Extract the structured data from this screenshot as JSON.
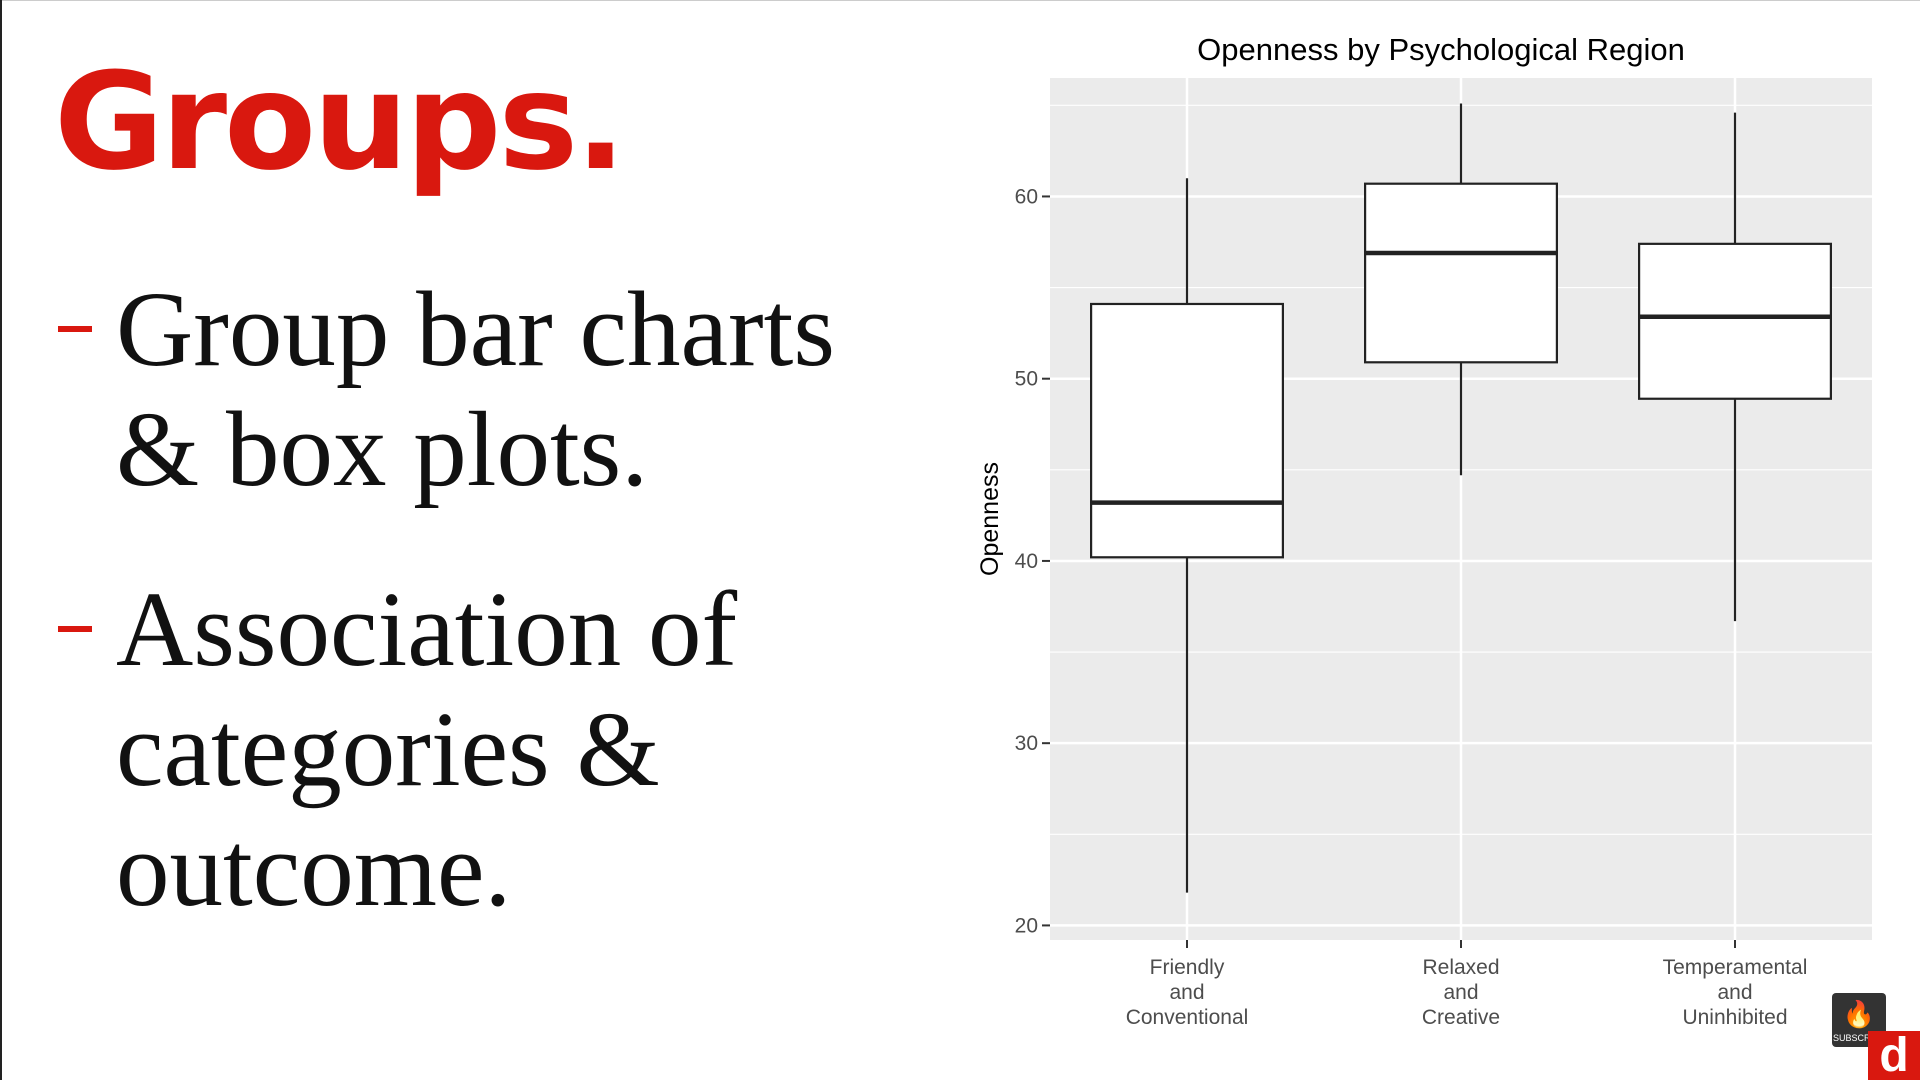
{
  "slide": {
    "title": "Groups.",
    "bullets": [
      {
        "lines": [
          "Group bar charts",
          "& box plots."
        ]
      },
      {
        "lines": [
          "Association of",
          "categories &",
          "outcome."
        ]
      }
    ]
  },
  "branding": {
    "subscribe_label": "SUBSCRIBE",
    "logo_letter": "d",
    "icon": "flame-icon"
  },
  "colors": {
    "accent": "#d9180f",
    "panel": "#ebebeb",
    "grid": "#ffffff",
    "box_stroke": "#222222",
    "box_fill": "#ffffff"
  },
  "chart_data": {
    "type": "boxplot",
    "title": "Openness by Psychological Region",
    "xlabel": "",
    "ylabel": "Openness",
    "ylim": [
      19.2,
      66.5
    ],
    "yticks": [
      20,
      30,
      40,
      50,
      60
    ],
    "grid": true,
    "legend": "none",
    "categories": [
      {
        "label": [
          "Friendly",
          "and",
          "Conventional"
        ],
        "whisker_low": 21.8,
        "q1": 40.2,
        "median": 43.2,
        "q3": 54.1,
        "whisker_high": 61.0
      },
      {
        "label": [
          "Relaxed",
          "and",
          "Creative"
        ],
        "whisker_low": 44.7,
        "q1": 50.9,
        "median": 56.9,
        "q3": 60.7,
        "whisker_high": 65.1
      },
      {
        "label": [
          "Temperamental",
          "and",
          "Uninhibited"
        ],
        "whisker_low": 36.7,
        "q1": 48.9,
        "median": 53.4,
        "q3": 57.4,
        "whisker_high": 64.6
      }
    ]
  }
}
